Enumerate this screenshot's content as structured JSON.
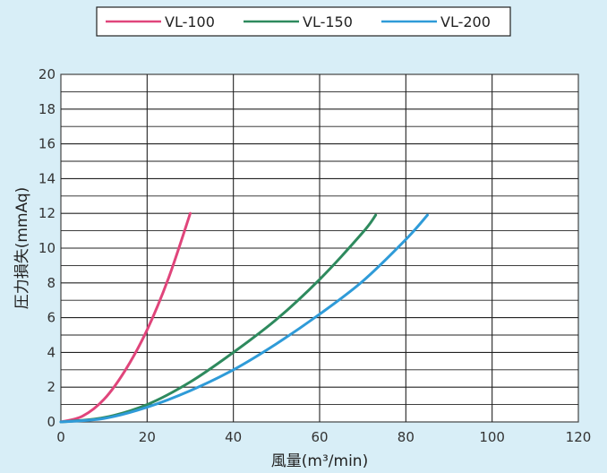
{
  "chart_data": {
    "type": "line",
    "xlabel": "風量(m³/min)",
    "ylabel": "圧力損失(mmAq)",
    "xlim": [
      0,
      120
    ],
    "ylim": [
      0,
      20
    ],
    "x_ticks": [
      0,
      20,
      40,
      60,
      80,
      100,
      120
    ],
    "y_ticks": [
      0,
      2,
      4,
      6,
      8,
      10,
      12,
      14,
      16,
      18,
      20
    ],
    "grid": true,
    "legend_position": "top",
    "series": [
      {
        "name": "VL-100",
        "color": "#e0457b",
        "x": [
          0,
          5,
          10,
          15,
          20,
          25,
          30
        ],
        "y": [
          0,
          0.33,
          1.3,
          3.0,
          5.3,
          8.3,
          12.0
        ]
      },
      {
        "name": "VL-150",
        "color": "#2e8a5e",
        "x": [
          0,
          10,
          20,
          30,
          40,
          50,
          60,
          70,
          73
        ],
        "y": [
          0,
          0.25,
          1.0,
          2.3,
          4.0,
          5.9,
          8.2,
          10.9,
          11.9
        ]
      },
      {
        "name": "VL-200",
        "color": "#2f9bd8",
        "x": [
          0,
          10,
          20,
          30,
          40,
          50,
          60,
          70,
          80,
          85
        ],
        "y": [
          0,
          0.2,
          0.85,
          1.8,
          3.0,
          4.5,
          6.2,
          8.1,
          10.5,
          11.9
        ]
      }
    ]
  }
}
